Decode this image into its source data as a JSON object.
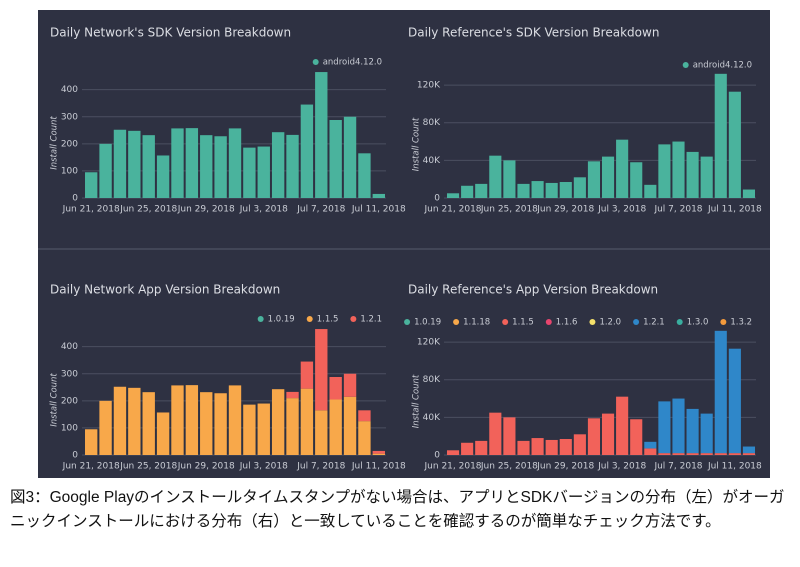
{
  "chart_data": [
    {
      "type": "bar",
      "title": "Daily Network's SDK Version Breakdown",
      "ylabel": "Install Count",
      "categories": [
        "Jun 21, 2018",
        null,
        null,
        null,
        "Jun 25, 2018",
        null,
        null,
        null,
        "Jun 29, 2018",
        null,
        null,
        null,
        "Jul 3, 2018",
        null,
        null,
        null,
        "Jul 7, 2018",
        null,
        null,
        null,
        "Jul 11, 2018"
      ],
      "series": [
        {
          "name": "android4.12.0",
          "color": "#4ab39d",
          "values": [
            95,
            200,
            252,
            248,
            232,
            157,
            257,
            258,
            232,
            228,
            257,
            186,
            190,
            243,
            233,
            345,
            465,
            288,
            300,
            165,
            15
          ]
        }
      ],
      "ylim": [
        0,
        480
      ],
      "yticks": [
        0,
        100,
        200,
        300,
        400
      ],
      "grid": true,
      "legend": "top-right"
    },
    {
      "type": "bar",
      "title": "Daily Reference's SDK Version Breakdown",
      "ylabel": "Install Count",
      "categories": [
        "Jun 21, 2018",
        null,
        null,
        null,
        "Jun 25, 2018",
        null,
        null,
        null,
        "Jun 29, 2018",
        null,
        null,
        null,
        "Jul 3, 2018",
        null,
        null,
        null,
        "Jul 7, 2018",
        null,
        null,
        null,
        "Jul 11, 2018",
        null
      ],
      "series": [
        {
          "name": "android4.12.0",
          "color": "#4ab39d",
          "values": [
            5000,
            13000,
            15000,
            45000,
            40000,
            15000,
            18000,
            16000,
            17000,
            22000,
            39000,
            44000,
            62000,
            38000,
            14000,
            57000,
            60000,
            49000,
            44000,
            132000,
            113000,
            9000
          ]
        }
      ],
      "ylim": [
        0,
        135000
      ],
      "yticks": [
        0,
        {
          "value": 40000,
          "label": "40K"
        },
        {
          "value": 80000,
          "label": "80K"
        },
        {
          "value": 120000,
          "label": "120K"
        }
      ],
      "grid": true,
      "legend": "top-right"
    },
    {
      "type": "bar",
      "stacked": true,
      "title": "Daily Network App Version Breakdown",
      "ylabel": "Install Count",
      "categories": [
        "Jun 21, 2018",
        null,
        null,
        null,
        "Jun 25, 2018",
        null,
        null,
        null,
        "Jun 29, 2018",
        null,
        null,
        null,
        "Jul 3, 2018",
        null,
        null,
        null,
        "Jul 7, 2018",
        null,
        null,
        null,
        "Jul 11, 2018"
      ],
      "series": [
        {
          "name": "1.0.19",
          "color": "#4ab39d",
          "values": [
            0,
            0,
            0,
            0,
            0,
            0,
            0,
            0,
            0,
            0,
            0,
            0,
            0,
            0,
            0,
            0,
            0,
            0,
            0,
            0,
            0
          ]
        },
        {
          "name": "1.1.5",
          "color": "#f8a84a",
          "values": [
            95,
            200,
            252,
            248,
            232,
            157,
            257,
            258,
            232,
            228,
            257,
            186,
            190,
            243,
            210,
            245,
            165,
            205,
            215,
            125,
            5
          ]
        },
        {
          "name": "1.2.1",
          "color": "#f2625a",
          "values": [
            0,
            0,
            0,
            0,
            0,
            0,
            0,
            0,
            0,
            0,
            0,
            0,
            0,
            0,
            23,
            100,
            300,
            83,
            85,
            40,
            10
          ]
        }
      ],
      "ylim": [
        0,
        480
      ],
      "yticks": [
        0,
        100,
        200,
        300,
        400
      ],
      "grid": true,
      "legend": "top-right"
    },
    {
      "type": "bar",
      "stacked": true,
      "title": "Daily Reference's App Version Breakdown",
      "ylabel": "Install Count",
      "categories": [
        "Jun 21, 2018",
        null,
        null,
        null,
        "Jun 25, 2018",
        null,
        null,
        null,
        "Jun 29, 2018",
        null,
        null,
        null,
        "Jul 3, 2018",
        null,
        null,
        null,
        "Jul 7, 2018",
        null,
        null,
        null,
        "Jul 11, 2018",
        null
      ],
      "series": [
        {
          "name": "1.0.19",
          "color": "#4ab39d",
          "values": [
            0,
            0,
            0,
            0,
            0,
            0,
            0,
            0,
            0,
            0,
            0,
            0,
            0,
            0,
            0,
            0,
            0,
            0,
            0,
            0,
            0,
            0
          ]
        },
        {
          "name": "1.1.18",
          "color": "#f8a84a",
          "values": [
            0,
            0,
            0,
            0,
            0,
            0,
            0,
            0,
            0,
            0,
            0,
            0,
            0,
            0,
            0,
            0,
            0,
            0,
            0,
            0,
            0,
            0
          ]
        },
        {
          "name": "1.1.5",
          "color": "#f2625a",
          "values": [
            5000,
            13000,
            15000,
            45000,
            40000,
            15000,
            18000,
            16000,
            17000,
            22000,
            39000,
            44000,
            62000,
            38000,
            7000,
            2000,
            2000,
            2000,
            2000,
            2000,
            2000,
            2000
          ]
        },
        {
          "name": "1.1.6",
          "color": "#e8456e",
          "values": [
            0,
            0,
            0,
            0,
            0,
            0,
            0,
            0,
            0,
            0,
            0,
            0,
            0,
            0,
            0,
            0,
            0,
            0,
            0,
            0,
            0,
            0
          ]
        },
        {
          "name": "1.2.0",
          "color": "#f4e06a",
          "values": [
            0,
            0,
            0,
            0,
            0,
            0,
            0,
            0,
            0,
            0,
            0,
            0,
            0,
            0,
            0,
            0,
            0,
            0,
            0,
            0,
            0,
            0
          ]
        },
        {
          "name": "1.2.1",
          "color": "#2f87c9",
          "values": [
            0,
            0,
            0,
            0,
            0,
            0,
            0,
            0,
            0,
            0,
            0,
            0,
            0,
            0,
            7000,
            55000,
            58000,
            47000,
            42000,
            130000,
            111000,
            7000
          ]
        },
        {
          "name": "1.3.0",
          "color": "#39ae9f",
          "values": [
            0,
            0,
            0,
            0,
            0,
            0,
            0,
            0,
            0,
            0,
            0,
            0,
            0,
            0,
            0,
            0,
            0,
            0,
            0,
            0,
            0,
            0
          ]
        },
        {
          "name": "1.3.2",
          "color": "#f39a3c",
          "values": [
            0,
            0,
            0,
            0,
            0,
            0,
            0,
            0,
            0,
            0,
            0,
            0,
            0,
            0,
            0,
            0,
            0,
            0,
            0,
            0,
            0,
            0
          ]
        }
      ],
      "ylim": [
        0,
        135000
      ],
      "yticks": [
        0,
        {
          "value": 40000,
          "label": "40K"
        },
        {
          "value": 80000,
          "label": "80K"
        },
        {
          "value": 120000,
          "label": "120K"
        }
      ],
      "grid": true,
      "legend": "top-right"
    }
  ],
  "caption": "図3：Google Playのインストールタイムスタンプがない場合は、アプリとSDKバージョンの分布（左）がオーガニックインストールにおける分布（右）と一致していることを確認するのが簡単なチェック方法です。"
}
